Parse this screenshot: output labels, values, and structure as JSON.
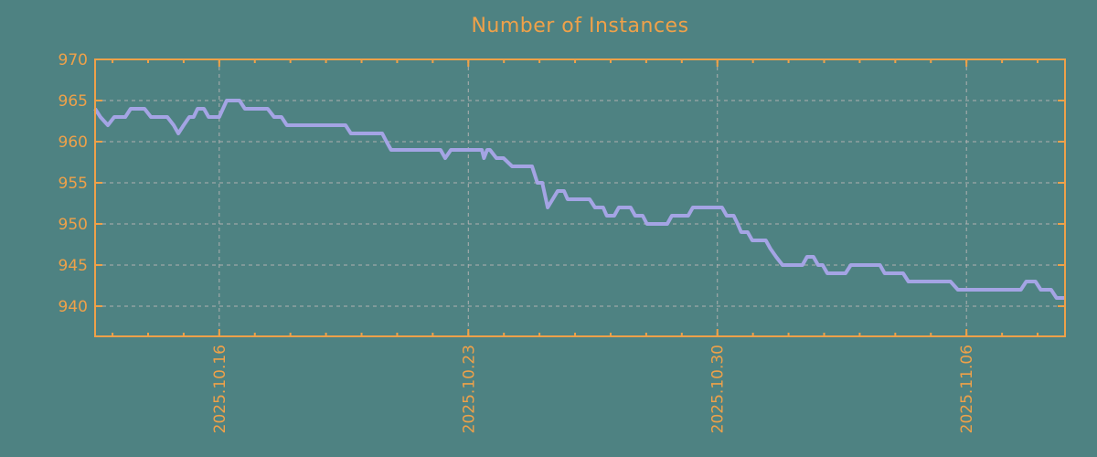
{
  "title": "Number of Instances",
  "colors": {
    "background": "#4e8282",
    "accent": "#efa149",
    "line": "#a4a4e4",
    "grid": "#b0b0b0"
  },
  "chart_data": {
    "type": "line",
    "title": "Number of Instances",
    "legend": "none",
    "x_axis": {
      "unit": "days from left edge of plot (dates)",
      "xlim": [
        0,
        27.26
      ],
      "major_ticks": [
        {
          "label": "2025.10.16",
          "pos": 3.49
        },
        {
          "label": "2025.10.23",
          "pos": 10.49
        },
        {
          "label": "2025.10.30",
          "pos": 17.49
        },
        {
          "label": "2025.11.06",
          "pos": 24.49
        }
      ],
      "minor_tick_start": 0.49,
      "minor_tick_step": 1,
      "minor_tick_count": 27,
      "label_rotation_deg": -90
    },
    "y_axis": {
      "ylim": [
        936.33,
        970
      ],
      "ticks": [
        940,
        945,
        950,
        955,
        960,
        965,
        970
      ]
    },
    "grid": {
      "horizontal": "dashed at y ticks",
      "vertical": "dashed at x major ticks"
    },
    "series": [
      {
        "name": "instances",
        "points": [
          [
            0.0,
            964
          ],
          [
            0.15,
            963
          ],
          [
            0.36,
            962
          ],
          [
            0.54,
            963
          ],
          [
            0.85,
            963
          ],
          [
            1.0,
            964
          ],
          [
            1.39,
            964
          ],
          [
            1.57,
            963
          ],
          [
            2.03,
            963
          ],
          [
            2.21,
            962
          ],
          [
            2.34,
            961
          ],
          [
            2.49,
            962
          ],
          [
            2.65,
            963
          ],
          [
            2.77,
            963
          ],
          [
            2.88,
            964
          ],
          [
            3.06,
            964
          ],
          [
            3.19,
            963
          ],
          [
            3.49,
            963
          ],
          [
            3.7,
            965
          ],
          [
            4.06,
            965
          ],
          [
            4.21,
            964
          ],
          [
            4.85,
            964
          ],
          [
            5.03,
            963
          ],
          [
            5.24,
            963
          ],
          [
            5.39,
            962
          ],
          [
            7.04,
            962
          ],
          [
            7.19,
            961
          ],
          [
            8.07,
            961
          ],
          [
            8.19,
            960
          ],
          [
            8.32,
            959
          ],
          [
            9.71,
            959
          ],
          [
            9.84,
            958
          ],
          [
            10.0,
            959
          ],
          [
            10.87,
            959
          ],
          [
            10.93,
            958
          ],
          [
            11.02,
            959
          ],
          [
            11.1,
            959
          ],
          [
            11.28,
            958
          ],
          [
            11.48,
            958
          ],
          [
            11.72,
            957
          ],
          [
            12.28,
            957
          ],
          [
            12.43,
            955
          ],
          [
            12.57,
            955
          ],
          [
            12.72,
            952
          ],
          [
            13.0,
            954
          ],
          [
            13.18,
            954
          ],
          [
            13.28,
            953
          ],
          [
            13.9,
            953
          ],
          [
            14.05,
            952
          ],
          [
            14.28,
            952
          ],
          [
            14.38,
            951
          ],
          [
            14.59,
            951
          ],
          [
            14.72,
            952
          ],
          [
            15.05,
            952
          ],
          [
            15.18,
            951
          ],
          [
            15.39,
            951
          ],
          [
            15.51,
            950
          ],
          [
            16.08,
            950
          ],
          [
            16.21,
            951
          ],
          [
            16.67,
            951
          ],
          [
            16.8,
            952
          ],
          [
            17.62,
            952
          ],
          [
            17.75,
            951
          ],
          [
            17.95,
            951
          ],
          [
            18.06,
            950
          ],
          [
            18.16,
            949
          ],
          [
            18.34,
            949
          ],
          [
            18.47,
            948
          ],
          [
            18.85,
            948
          ],
          [
            18.98,
            947
          ],
          [
            19.14,
            946
          ],
          [
            19.32,
            945
          ],
          [
            19.88,
            945
          ],
          [
            20.01,
            946
          ],
          [
            20.19,
            946
          ],
          [
            20.32,
            945
          ],
          [
            20.45,
            945
          ],
          [
            20.58,
            944
          ],
          [
            21.09,
            944
          ],
          [
            21.24,
            945
          ],
          [
            22.06,
            945
          ],
          [
            22.19,
            944
          ],
          [
            22.71,
            944
          ],
          [
            22.86,
            943
          ],
          [
            24.04,
            943
          ],
          [
            24.25,
            942
          ],
          [
            26.02,
            942
          ],
          [
            26.17,
            943
          ],
          [
            26.43,
            943
          ],
          [
            26.58,
            942
          ],
          [
            26.87,
            942
          ],
          [
            27.02,
            941
          ],
          [
            27.26,
            941
          ]
        ]
      }
    ]
  }
}
